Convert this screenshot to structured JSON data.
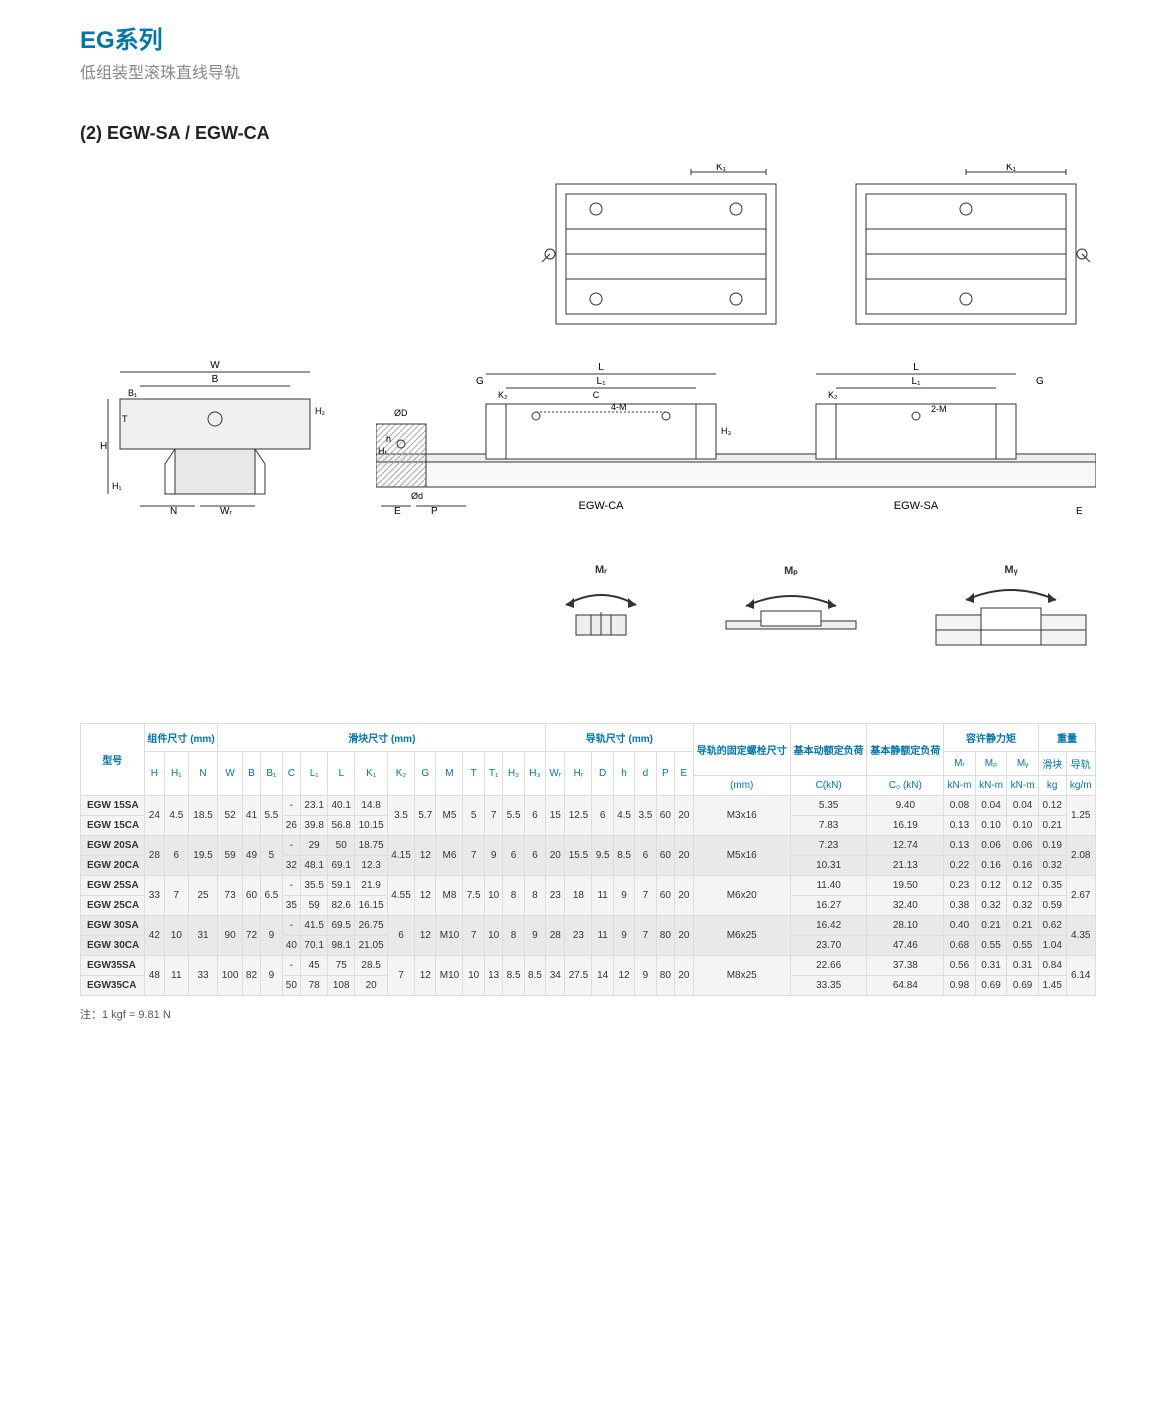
{
  "header": {
    "series": "EG系列",
    "subtitle": "低组装型滚珠直线导轨",
    "color": "#0077aa"
  },
  "section": "(2) EGW-SA / EGW-CA",
  "diagram_labels": {
    "top1_k1": "K₁",
    "top2_k1": "K₁",
    "mid_left_W": "W",
    "mid_left_B": "B",
    "mid_left_B1": "B₁",
    "mid_left_H": "H",
    "mid_left_H1": "H₁",
    "mid_left_H2": "H₂",
    "mid_left_T": "T",
    "mid_left_N": "N",
    "mid_left_WR": "Wᵣ",
    "mid_G": "G",
    "mid_L": "L",
    "mid_L1": "L₁",
    "mid_K2": "K₂",
    "mid_C": "C",
    "mid_4M": "4-M",
    "mid_2M": "2-M",
    "mid_OD": "ØD",
    "mid_Od": "Ød",
    "mid_h": "h",
    "mid_HR": "Hᵣ",
    "mid_E": "E",
    "mid_P": "P",
    "mid_H3": "H₃",
    "egw_ca": "EGW-CA",
    "egw_sa": "EGW-SA",
    "mr": "Mᵣ",
    "mp": "Mₚ",
    "my": "Mᵧ"
  },
  "table": {
    "header_groups": {
      "model": "型号",
      "assembly": "组件尺寸 (mm)",
      "block": "滑块尺寸 (mm)",
      "rail": "导轨尺寸 (mm)",
      "bolt": "导轨的固定螺栓尺寸",
      "dyn": "基本动额定负荷",
      "stat": "基本静额定负荷",
      "moment": "容许静力矩",
      "weight": "重量"
    },
    "cols": [
      "H",
      "H₁",
      "N",
      "W",
      "B",
      "B₁",
      "C",
      "L₁",
      "L",
      "K₁",
      "K₂",
      "G",
      "M",
      "T",
      "T₁",
      "H₂",
      "H₃",
      "Wᵣ",
      "Hᵣ",
      "D",
      "h",
      "d",
      "P",
      "E",
      "(mm)",
      "C(kN)",
      "C₀ (kN)",
      "Mᵣ",
      "Mₚ",
      "Mᵧ",
      "滑块",
      "导轨"
    ],
    "subunits": {
      "mr": "kN-m",
      "mp": "kN-m",
      "my": "kN-m",
      "block": "kg",
      "rail": "kg/m"
    },
    "rows": [
      {
        "model": "EGW 15SA",
        "cells": {
          "C": "-",
          "L1": "23.1",
          "L": "40.1",
          "K1": "14.8",
          "Ckn": "5.35",
          "C0": "9.40",
          "Mr": "0.08",
          "Mp": "0.04",
          "My": "0.04",
          "blk": "0.12"
        }
      },
      {
        "model": "EGW 15CA",
        "cells": {
          "C": "26",
          "L1": "39.8",
          "L": "56.8",
          "K1": "10.15",
          "Ckn": "7.83",
          "C0": "16.19",
          "Mr": "0.13",
          "Mp": "0.10",
          "My": "0.10",
          "blk": "0.21"
        }
      },
      {
        "model": "EGW 20SA",
        "cells": {
          "C": "-",
          "L1": "29",
          "L": "50",
          "K1": "18.75",
          "Ckn": "7.23",
          "C0": "12.74",
          "Mr": "0.13",
          "Mp": "0.06",
          "My": "0.06",
          "blk": "0.19"
        }
      },
      {
        "model": "EGW 20CA",
        "cells": {
          "C": "32",
          "L1": "48.1",
          "L": "69.1",
          "K1": "12.3",
          "Ckn": "10.31",
          "C0": "21.13",
          "Mr": "0.22",
          "Mp": "0.16",
          "My": "0.16",
          "blk": "0.32"
        }
      },
      {
        "model": "EGW 25SA",
        "cells": {
          "C": "-",
          "L1": "35.5",
          "L": "59.1",
          "K1": "21.9",
          "Ckn": "11.40",
          "C0": "19.50",
          "Mr": "0.23",
          "Mp": "0.12",
          "My": "0.12",
          "blk": "0.35"
        }
      },
      {
        "model": "EGW 25CA",
        "cells": {
          "C": "35",
          "L1": "59",
          "L": "82.6",
          "K1": "16.15",
          "Ckn": "16.27",
          "C0": "32.40",
          "Mr": "0.38",
          "Mp": "0.32",
          "My": "0.32",
          "blk": "0.59"
        }
      },
      {
        "model": "EGW 30SA",
        "cells": {
          "C": "-",
          "L1": "41.5",
          "L": "69.5",
          "K1": "26.75",
          "Ckn": "16.42",
          "C0": "28.10",
          "Mr": "0.40",
          "Mp": "0.21",
          "My": "0.21",
          "blk": "0.62"
        }
      },
      {
        "model": "EGW 30CA",
        "cells": {
          "C": "40",
          "L1": "70.1",
          "L": "98.1",
          "K1": "21.05",
          "Ckn": "23.70",
          "C0": "47.46",
          "Mr": "0.68",
          "Mp": "0.55",
          "My": "0.55",
          "blk": "1.04"
        }
      },
      {
        "model": "EGW35SA",
        "cells": {
          "C": "-",
          "L1": "45",
          "L": "75",
          "K1": "28.5",
          "Ckn": "22.66",
          "C0": "37.38",
          "Mr": "0.56",
          "Mp": "0.31",
          "My": "0.31",
          "blk": "0.84"
        }
      },
      {
        "model": "EGW35CA",
        "cells": {
          "C": "50",
          "L1": "78",
          "L": "108",
          "K1": "20",
          "Ckn": "33.35",
          "C0": "64.84",
          "Mr": "0.98",
          "Mp": "0.69",
          "My": "0.69",
          "blk": "1.45"
        }
      }
    ],
    "shared": [
      {
        "H": "24",
        "H1": "4.5",
        "N": "18.5",
        "W": "52",
        "B": "41",
        "B1": "5.5",
        "K2": "3.5",
        "G": "5.7",
        "M": "M5",
        "T": "5",
        "T1": "7",
        "H2": "5.5",
        "H3": "6",
        "Wr": "15",
        "Hr": "12.5",
        "D": "6",
        "h": "4.5",
        "d": "3.5",
        "P": "60",
        "E": "20",
        "bolt": "M3x16",
        "rail": "1.25"
      },
      {
        "H": "28",
        "H1": "6",
        "N": "19.5",
        "W": "59",
        "B": "49",
        "B1": "5",
        "K2": "4.15",
        "G": "12",
        "M": "M6",
        "T": "7",
        "T1": "9",
        "H2": "6",
        "H3": "6",
        "Wr": "20",
        "Hr": "15.5",
        "D": "9.5",
        "h": "8.5",
        "d": "6",
        "P": "60",
        "E": "20",
        "bolt": "M5x16",
        "rail": "2.08"
      },
      {
        "H": "33",
        "H1": "7",
        "N": "25",
        "W": "73",
        "B": "60",
        "B1": "6.5",
        "K2": "4.55",
        "G": "12",
        "M": "M8",
        "T": "7.5",
        "T1": "10",
        "H2": "8",
        "H3": "8",
        "Wr": "23",
        "Hr": "18",
        "D": "11",
        "h": "9",
        "d": "7",
        "P": "60",
        "E": "20",
        "bolt": "M6x20",
        "rail": "2.67"
      },
      {
        "H": "42",
        "H1": "10",
        "N": "31",
        "W": "90",
        "B": "72",
        "B1": "9",
        "K2": "6",
        "G": "12",
        "M": "M10",
        "T": "7",
        "T1": "10",
        "H2": "8",
        "H3": "9",
        "Wr": "28",
        "Hr": "23",
        "D": "11",
        "h": "9",
        "d": "7",
        "P": "80",
        "E": "20",
        "bolt": "M6x25",
        "rail": "4.35"
      },
      {
        "H": "48",
        "H1": "11",
        "N": "33",
        "W": "100",
        "B": "82",
        "B1": "9",
        "K2": "7",
        "G": "12",
        "M": "M10",
        "T": "10",
        "T1": "13",
        "H2": "8.5",
        "H3": "8.5",
        "Wr": "34",
        "Hr": "27.5",
        "D": "14",
        "h": "12",
        "d": "9",
        "P": "80",
        "E": "20",
        "bolt": "M8x25",
        "rail": "6.14"
      }
    ]
  },
  "footnote": "注：1 kgf = 9.81 N"
}
